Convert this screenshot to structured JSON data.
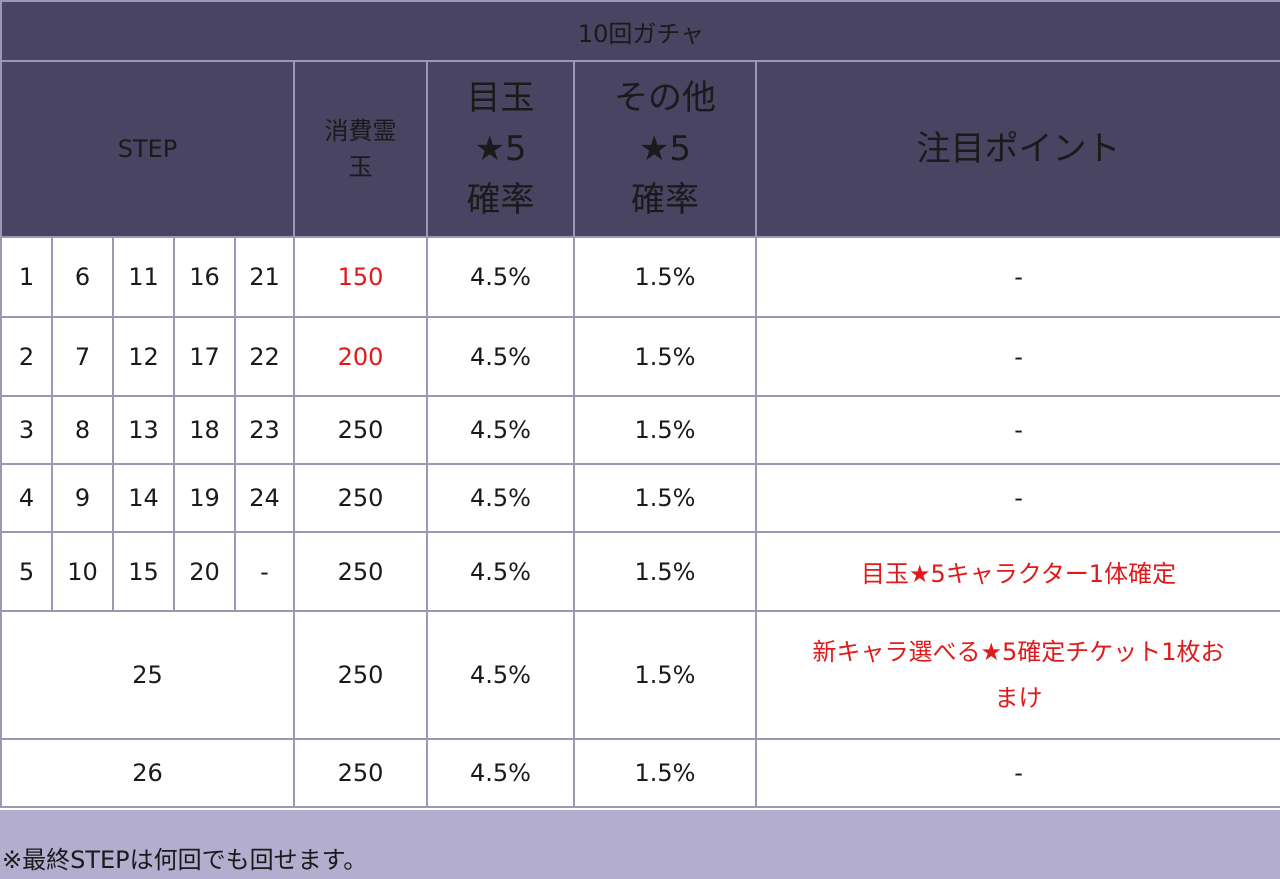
{
  "title": "10回ガチャ",
  "headers": {
    "step": "STEP",
    "cost_line1": "消費霊",
    "cost_line2": "玉",
    "featured_line1": "目玉",
    "featured_line2": "★5",
    "featured_line3": "確率",
    "other_line1": "その他",
    "other_line2": "★5",
    "other_line3": "確率",
    "notes": "注目ポイント"
  },
  "rows": [
    {
      "steps": [
        "1",
        "6",
        "11",
        "16",
        "21"
      ],
      "cost": "150",
      "featured_rate": "4.5%",
      "other_rate": "1.5%",
      "note": "-"
    },
    {
      "steps": [
        "2",
        "7",
        "12",
        "17",
        "22"
      ],
      "cost": "200",
      "featured_rate": "4.5%",
      "other_rate": "1.5%",
      "note": "-"
    },
    {
      "steps": [
        "3",
        "8",
        "13",
        "18",
        "23"
      ],
      "cost": "250",
      "featured_rate": "4.5%",
      "other_rate": "1.5%",
      "note": "-"
    },
    {
      "steps": [
        "4",
        "9",
        "14",
        "19",
        "24"
      ],
      "cost": "250",
      "featured_rate": "4.5%",
      "other_rate": "1.5%",
      "note": "-"
    },
    {
      "steps": [
        "5",
        "10",
        "15",
        "20",
        "-"
      ],
      "cost": "250",
      "featured_rate": "4.5%",
      "other_rate": "1.5%",
      "note": "目玉★5キャラクター1体確定"
    },
    {
      "step": "25",
      "cost": "250",
      "featured_rate": "4.5%",
      "other_rate": "1.5%",
      "note_line1": "新キャラ選べる★5確定チケット1枚お",
      "note_line2": "まけ"
    },
    {
      "step": "26",
      "cost": "250",
      "featured_rate": "4.5%",
      "other_rate": "1.5%",
      "note": "-"
    }
  ],
  "footnote": "※最終STEPは何回でも回せます。",
  "colors": {
    "header_bg": "#484461",
    "header_text": "#ffffff",
    "highlight_red": "#e01a1a",
    "footer_bg": "#b3adcf",
    "border": "#9b97b4"
  }
}
